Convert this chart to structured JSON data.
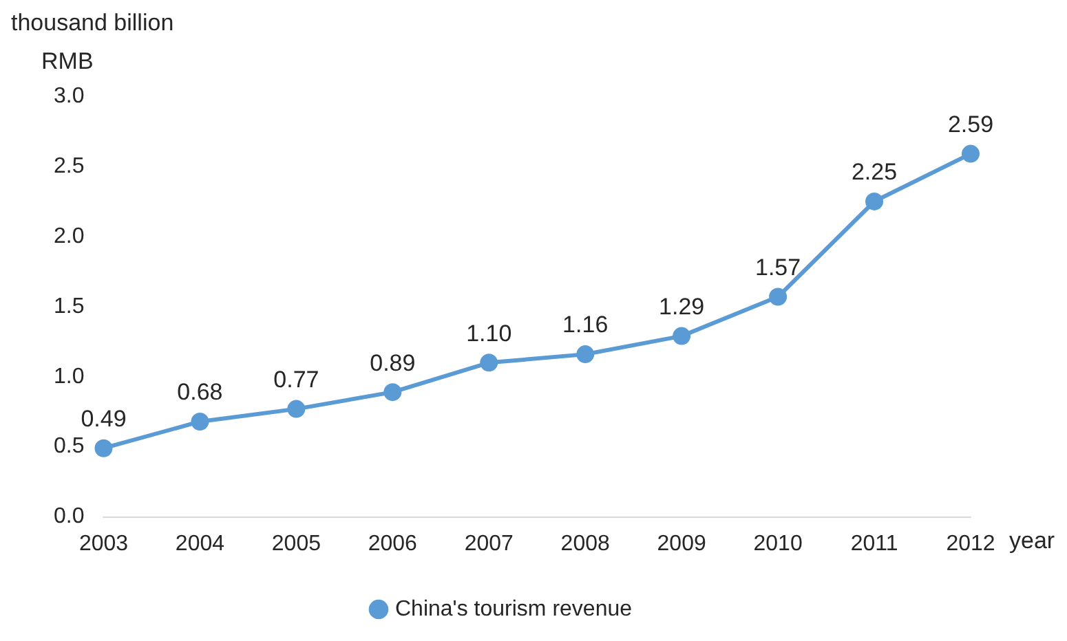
{
  "chart_data": {
    "type": "line",
    "ylabel": "thousand billion RMB",
    "xlabel": "year",
    "categories": [
      "2003",
      "2004",
      "2005",
      "2006",
      "2007",
      "2008",
      "2009",
      "2010",
      "2011",
      "2012"
    ],
    "series": [
      {
        "name": "China's tourism revenue",
        "color": "#5b9bd5",
        "values": [
          0.49,
          0.68,
          0.77,
          0.89,
          1.1,
          1.16,
          1.29,
          1.57,
          2.25,
          2.59
        ],
        "value_labels": [
          "0.49",
          "0.68",
          "0.77",
          "0.89",
          "1.10",
          "1.16",
          "1.29",
          "1.57",
          "2.25",
          "2.59"
        ]
      }
    ],
    "ylim": [
      0,
      3
    ],
    "yticks": [
      {
        "value": 0,
        "label": "0.0"
      },
      {
        "value": 0.5,
        "label": "0.5"
      },
      {
        "value": 1,
        "label": "1.0"
      },
      {
        "value": 1.5,
        "label": "1.5"
      },
      {
        "value": 2,
        "label": "2.0"
      },
      {
        "value": 2.5,
        "label": "2.5"
      },
      {
        "value": 3,
        "label": "3.0"
      }
    ],
    "grid": false,
    "legend": "bottom",
    "marker": "circle",
    "line_style": "solid"
  }
}
